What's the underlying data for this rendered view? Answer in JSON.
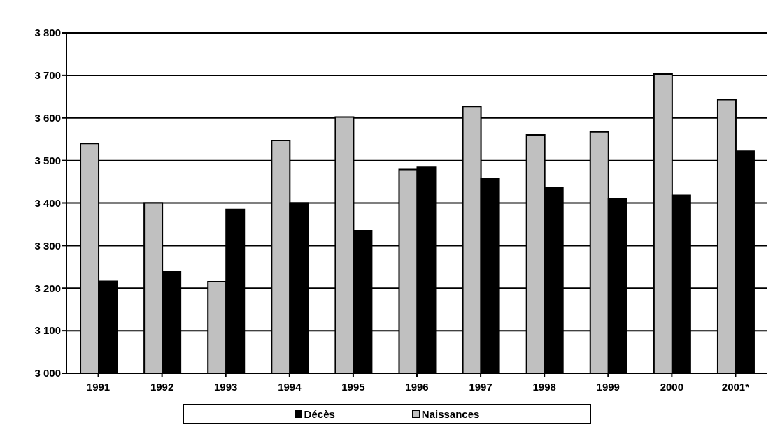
{
  "chart_data": {
    "type": "bar",
    "categories": [
      "1991",
      "1992",
      "1993",
      "1994",
      "1995",
      "1996",
      "1997",
      "1998",
      "1999",
      "2000",
      "2001*"
    ],
    "series": [
      {
        "name": "Naissances",
        "color": "#c0c0c0",
        "values": [
          3540,
          3400,
          3215,
          3547,
          3602,
          3479,
          3627,
          3560,
          3567,
          3703,
          3643
        ]
      },
      {
        "name": "Décès",
        "color": "#000000",
        "values": [
          3216,
          3238,
          3385,
          3400,
          3335,
          3484,
          3458,
          3437,
          3410,
          3418,
          3522
        ]
      }
    ],
    "ylim": [
      3000,
      3800
    ],
    "yticks": [
      {
        "value": 3000,
        "label": "3 000"
      },
      {
        "value": 3100,
        "label": "3 100"
      },
      {
        "value": 3200,
        "label": "3 200"
      },
      {
        "value": 3300,
        "label": "3 300"
      },
      {
        "value": 3400,
        "label": "3 400"
      },
      {
        "value": 3500,
        "label": "3 500"
      },
      {
        "value": 3600,
        "label": "3 600"
      },
      {
        "value": 3700,
        "label": "3 700"
      },
      {
        "value": 3800,
        "label": "3 800"
      }
    ],
    "grid": "y",
    "legend": "bottom"
  }
}
